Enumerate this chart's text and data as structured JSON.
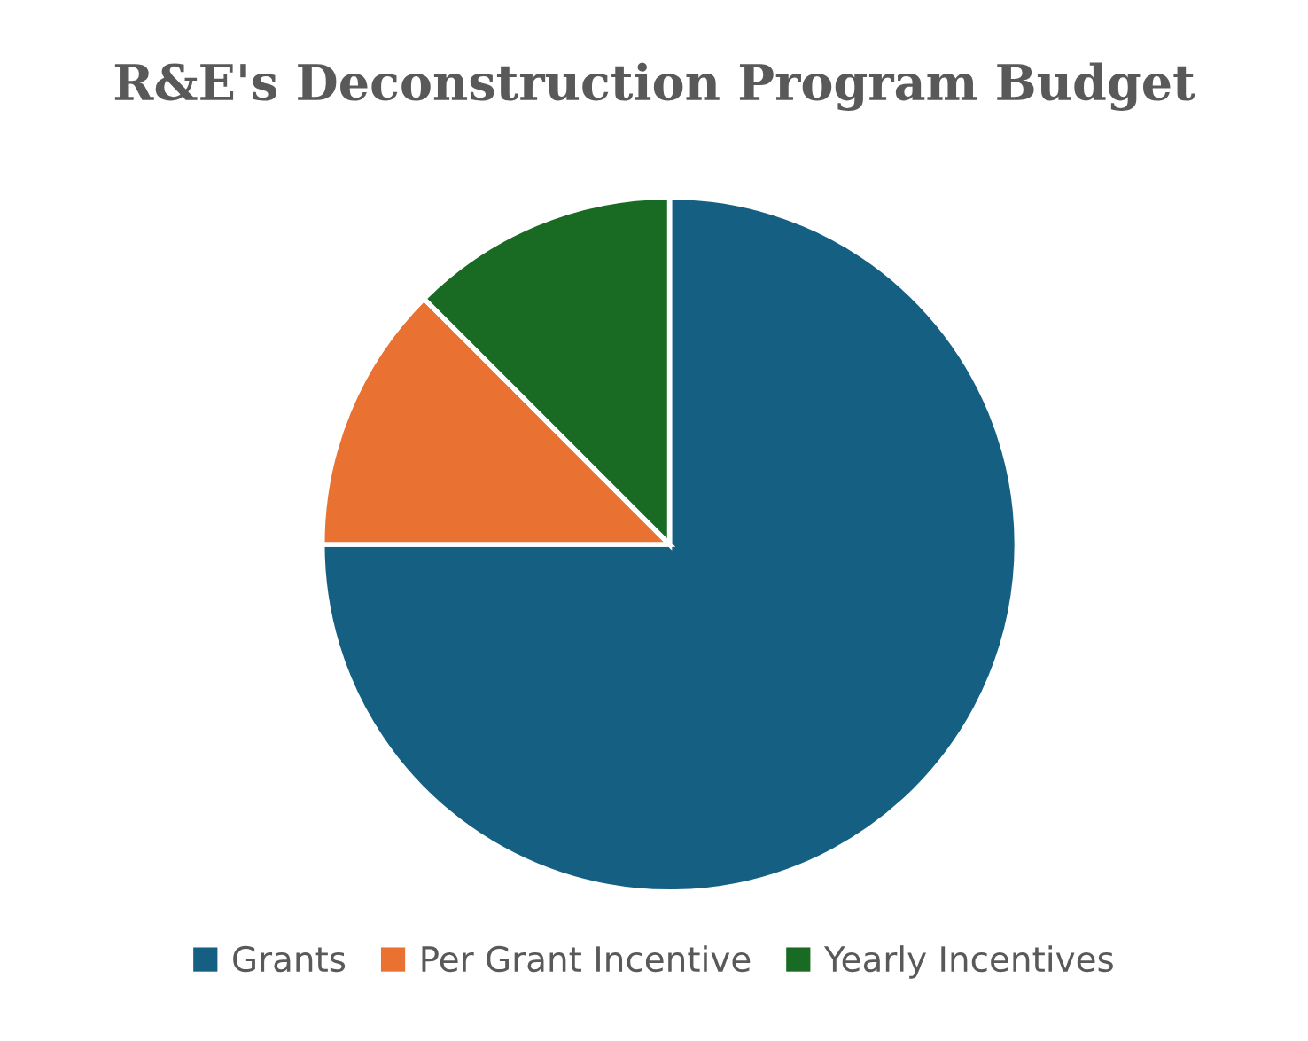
{
  "chart_data": {
    "type": "pie",
    "title": "R&E's Deconstruction Program Budget",
    "categories": [
      "Grants",
      "Per Grant Incentive",
      "Yearly Incentives"
    ],
    "values": [
      75,
      12.5,
      12.5
    ],
    "colors": [
      "#156082",
      "#e97132",
      "#196b24"
    ],
    "legend": "bottom"
  }
}
